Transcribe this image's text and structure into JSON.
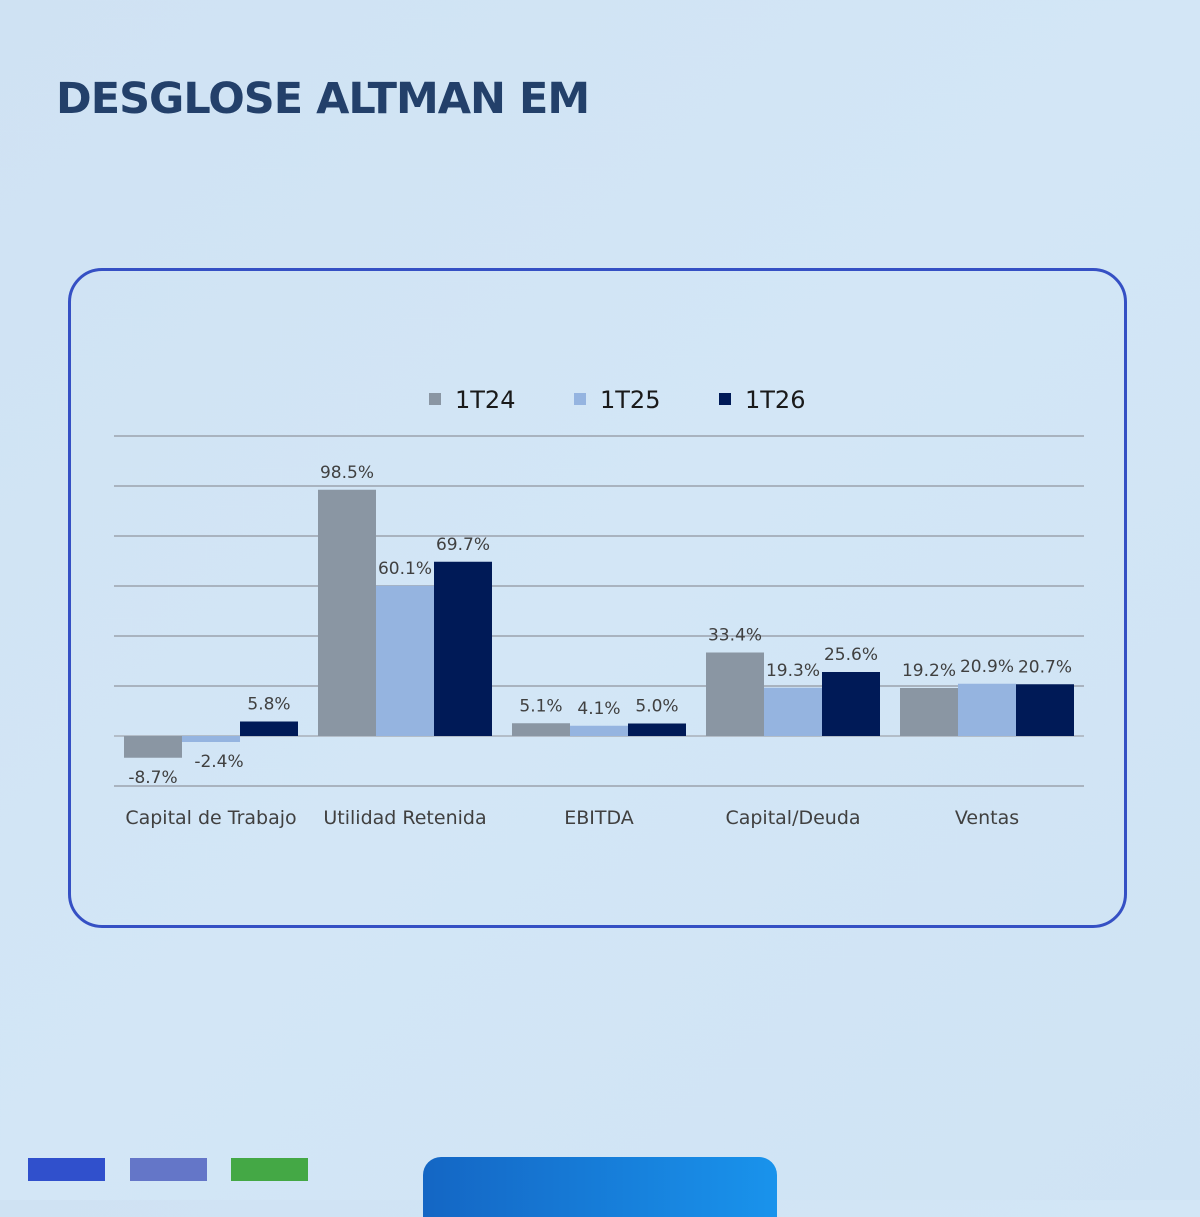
{
  "page": {
    "title": "DESGLOSE ALTMAN EM"
  },
  "chart_data": {
    "type": "bar",
    "categories": [
      "Capital de Trabajo",
      "Utilidad Retenida",
      "EBITDA",
      "Capital/Deuda",
      "Ventas"
    ],
    "series": [
      {
        "name": "1T24",
        "color": "#8a96a3",
        "values": [
          -8.7,
          98.5,
          5.1,
          33.4,
          19.2
        ],
        "labels": [
          "-8.7%",
          "98.5%",
          "5.1%",
          "33.4%",
          "19.2%"
        ]
      },
      {
        "name": "1T25",
        "color": "#95b4e0",
        "values": [
          -2.4,
          60.1,
          4.1,
          19.3,
          20.9
        ],
        "labels": [
          "-2.4%",
          "60.1%",
          "4.1%",
          "19.3%",
          "20.9%"
        ]
      },
      {
        "name": "1T26",
        "color": "#001a57",
        "values": [
          5.8,
          69.7,
          5.0,
          25.6,
          20.7
        ],
        "labels": [
          "5.8%",
          "69.7%",
          "5.0%",
          "25.6%",
          "20.7%"
        ]
      }
    ],
    "ylim": [
      -20,
      120
    ],
    "grid": true,
    "legend_position": "top-center",
    "axis_labels_shown": false
  },
  "decor": {
    "swatches": [
      "#3050cc",
      "#6476c8",
      "#44a845"
    ],
    "tab_gradient": [
      "#1466c4",
      "#1993ec"
    ]
  }
}
